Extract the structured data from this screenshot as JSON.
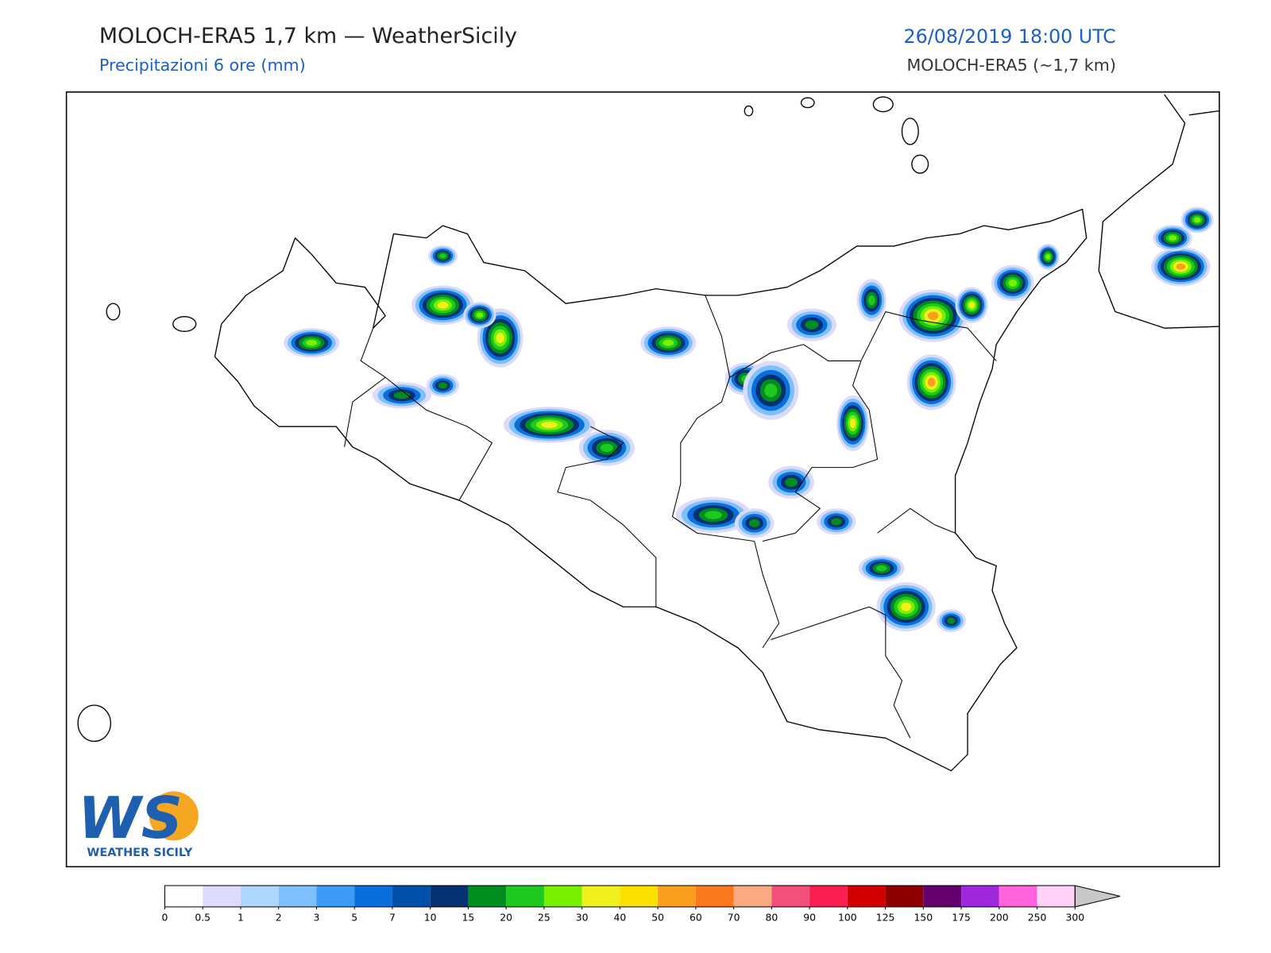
{
  "header": {
    "title": "MOLOCH-ERA5 1,7 km — WeatherSicily",
    "subtitle": "Precipitazioni 6 ore (mm)",
    "datetime": "26/08/2019 18:00 UTC",
    "model": "MOLOCH-ERA5 (~1,7 km)"
  },
  "colorbar": {
    "levels": [
      0,
      0.5,
      1,
      2,
      3,
      5,
      7,
      10,
      15,
      20,
      25,
      30,
      40,
      50,
      60,
      70,
      80,
      90,
      100,
      125,
      150,
      175,
      200,
      250,
      300
    ],
    "colors": [
      "#ffffff",
      "#dcdcfa",
      "#aed6fd",
      "#7ec0fb",
      "#3d9bf5",
      "#0a6fdc",
      "#0050aa",
      "#063171",
      "#008c1e",
      "#1ec81e",
      "#78f000",
      "#f0f01e",
      "#fae100",
      "#fa9e1e",
      "#fa781e",
      "#faaa82",
      "#f0507a",
      "#fa1e50",
      "#d20000",
      "#8c0000",
      "#64006e",
      "#a028dc",
      "#ff64dc",
      "#ffd2f8"
    ],
    "extend_color": "#c8c8c8"
  },
  "logo": {
    "initials": "WS",
    "name": "WEATHER SICILY"
  }
}
